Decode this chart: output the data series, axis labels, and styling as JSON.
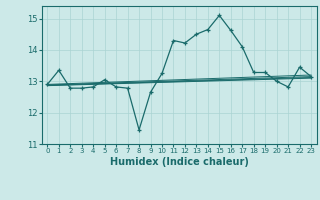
{
  "xlabel": "Humidex (Indice chaleur)",
  "background_color": "#cce9e8",
  "grid_color": "#aad4d3",
  "line_color": "#1a6b6b",
  "xlim": [
    -0.5,
    23.5
  ],
  "ylim": [
    11.0,
    15.4
  ],
  "yticks": [
    11,
    12,
    13,
    14,
    15
  ],
  "xticks": [
    0,
    1,
    2,
    3,
    4,
    5,
    6,
    7,
    8,
    9,
    10,
    11,
    12,
    13,
    14,
    15,
    16,
    17,
    18,
    19,
    20,
    21,
    22,
    23
  ],
  "main_x": [
    0,
    1,
    2,
    3,
    4,
    5,
    6,
    7,
    8,
    9,
    10,
    11,
    12,
    13,
    14,
    15,
    16,
    17,
    18,
    19,
    20,
    21,
    22,
    23
  ],
  "main_y": [
    12.9,
    13.35,
    12.78,
    12.78,
    12.82,
    13.05,
    12.82,
    12.78,
    11.45,
    12.65,
    13.25,
    14.3,
    14.22,
    14.5,
    14.65,
    15.1,
    14.62,
    14.1,
    13.28,
    13.28,
    13.0,
    12.82,
    13.45,
    13.15
  ],
  "ref_lines": [
    [
      12.9,
      13.2
    ],
    [
      12.88,
      13.15
    ],
    [
      12.87,
      13.12
    ],
    [
      12.86,
      13.1
    ]
  ]
}
